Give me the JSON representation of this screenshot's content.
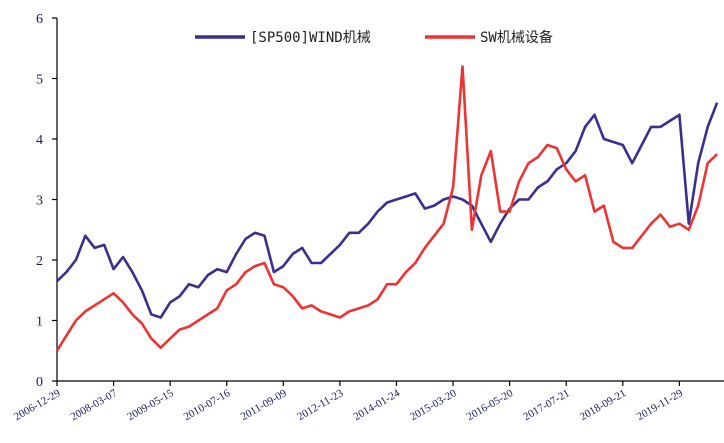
{
  "chart_data": {
    "type": "line",
    "categories": [
      "2006-12-29",
      null,
      null,
      null,
      null,
      null,
      "2008-03-07",
      null,
      null,
      null,
      null,
      null,
      "2009-05-15",
      null,
      null,
      null,
      null,
      null,
      "2010-07-16",
      null,
      null,
      null,
      null,
      null,
      "2011-09-09",
      null,
      null,
      null,
      null,
      null,
      "2012-11-23",
      null,
      null,
      null,
      null,
      null,
      "2014-01-24",
      null,
      null,
      null,
      null,
      null,
      "2015-03-20",
      null,
      null,
      null,
      null,
      null,
      "2016-05-20",
      null,
      null,
      null,
      null,
      null,
      "2017-07-21",
      null,
      null,
      null,
      null,
      null,
      "2018-09-21",
      null,
      null,
      null,
      null,
      null,
      "2019-11-29",
      null,
      null,
      null,
      null
    ],
    "series": [
      {
        "name": "[SP500]WIND机械",
        "color": "#3a2f8f",
        "values": [
          1.65,
          1.8,
          2.0,
          2.4,
          2.2,
          2.25,
          1.85,
          2.05,
          1.8,
          1.5,
          1.1,
          1.05,
          1.3,
          1.4,
          1.6,
          1.55,
          1.75,
          1.85,
          1.8,
          2.1,
          2.35,
          2.45,
          2.4,
          1.8,
          1.9,
          2.1,
          2.2,
          1.95,
          1.95,
          2.1,
          2.25,
          2.45,
          2.45,
          2.6,
          2.8,
          2.95,
          3.0,
          3.05,
          3.1,
          2.85,
          2.9,
          3.0,
          3.05,
          3.0,
          2.9,
          2.6,
          2.3,
          2.6,
          2.85,
          3.0,
          3.0,
          3.2,
          3.3,
          3.5,
          3.6,
          3.8,
          4.2,
          4.4,
          4.0,
          3.95,
          3.9,
          3.6,
          3.9,
          4.2,
          4.2,
          4.3,
          4.4,
          2.6,
          3.6,
          4.2,
          4.6
        ]
      },
      {
        "name": "SW机械设备",
        "color": "#ee3333",
        "values": [
          0.5,
          0.75,
          1.0,
          1.15,
          1.25,
          1.35,
          1.45,
          1.3,
          1.1,
          0.95,
          0.7,
          0.55,
          0.7,
          0.85,
          0.9,
          1.0,
          1.1,
          1.2,
          1.5,
          1.6,
          1.8,
          1.9,
          1.95,
          1.6,
          1.55,
          1.4,
          1.2,
          1.25,
          1.15,
          1.1,
          1.05,
          1.15,
          1.2,
          1.25,
          1.35,
          1.6,
          1.6,
          1.8,
          1.95,
          2.2,
          2.4,
          2.6,
          3.2,
          5.2,
          2.5,
          3.4,
          3.8,
          2.8,
          2.8,
          3.3,
          3.6,
          3.7,
          3.9,
          3.85,
          3.5,
          3.3,
          3.4,
          2.8,
          2.9,
          2.3,
          2.2,
          2.2,
          2.4,
          2.6,
          2.75,
          2.55,
          2.6,
          2.5,
          2.9,
          3.6,
          3.75
        ]
      }
    ],
    "ylim": [
      0,
      6
    ],
    "yticks": [
      0,
      1,
      2,
      3,
      4,
      5,
      6
    ],
    "legend": "top"
  }
}
